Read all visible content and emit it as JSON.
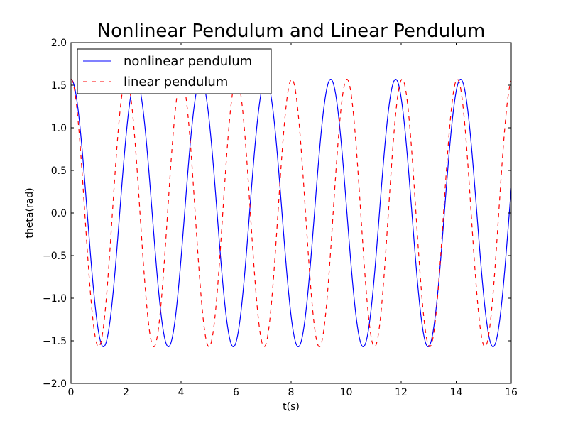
{
  "chart_data": {
    "type": "line",
    "title": "Nonlinear Pendulum and Linear Pendulum",
    "xlabel": "t(s)",
    "ylabel": "theta(rad)",
    "xlim": [
      0,
      16
    ],
    "ylim": [
      -2.0,
      2.0
    ],
    "x_ticks": [
      0,
      2,
      4,
      6,
      8,
      10,
      12,
      14,
      16
    ],
    "x_tick_labels": [
      "0",
      "2",
      "4",
      "6",
      "8",
      "10",
      "12",
      "14",
      "16"
    ],
    "y_ticks": [
      -2.0,
      -1.5,
      -1.0,
      -0.5,
      0.0,
      0.5,
      1.0,
      1.5,
      2.0
    ],
    "y_tick_labels": [
      "−2.0",
      "−1.5",
      "−1.0",
      "−0.5",
      "0.0",
      "0.5",
      "1.0",
      "1.5",
      "2.0"
    ],
    "grid": false,
    "legend_position": "top-left",
    "series": [
      {
        "name": "nonlinear pendulum",
        "color": "#0000ff",
        "style": "solid",
        "amplitude": 1.57,
        "period": 2.36,
        "points": [
          [
            0.0,
            1.57
          ],
          [
            0.59,
            0.0
          ],
          [
            1.18,
            -1.57
          ],
          [
            1.77,
            0.0
          ],
          [
            2.36,
            1.57
          ],
          [
            2.95,
            0.0
          ],
          [
            3.54,
            -1.57
          ],
          [
            4.13,
            0.0
          ],
          [
            4.72,
            1.57
          ],
          [
            5.31,
            0.0
          ],
          [
            5.9,
            -1.57
          ],
          [
            6.49,
            0.0
          ],
          [
            7.08,
            1.57
          ],
          [
            7.67,
            0.0
          ],
          [
            8.26,
            -1.57
          ],
          [
            8.85,
            0.0
          ],
          [
            9.44,
            1.57
          ],
          [
            10.03,
            0.0
          ],
          [
            10.62,
            -1.57
          ],
          [
            11.21,
            0.0
          ],
          [
            11.8,
            1.57
          ],
          [
            12.39,
            0.0
          ],
          [
            12.98,
            -1.57
          ],
          [
            13.57,
            0.0
          ],
          [
            14.16,
            1.57
          ],
          [
            14.75,
            0.0
          ],
          [
            15.34,
            -1.57
          ],
          [
            15.93,
            0.0
          ],
          [
            16.0,
            0.19
          ]
        ]
      },
      {
        "name": "linear pendulum",
        "color": "#ff0000",
        "style": "dashed",
        "amplitude": 1.57,
        "period": 2.006,
        "points": [
          [
            0.0,
            1.57
          ],
          [
            0.5,
            0.0
          ],
          [
            1.0,
            -1.57
          ],
          [
            1.5,
            0.0
          ],
          [
            2.01,
            1.57
          ],
          [
            2.51,
            0.0
          ],
          [
            3.01,
            -1.57
          ],
          [
            3.51,
            0.0
          ],
          [
            4.01,
            1.57
          ],
          [
            4.51,
            0.0
          ],
          [
            5.02,
            -1.57
          ],
          [
            5.52,
            0.0
          ],
          [
            6.02,
            1.57
          ],
          [
            6.52,
            0.0
          ],
          [
            7.02,
            -1.57
          ],
          [
            7.52,
            0.0
          ],
          [
            8.02,
            1.57
          ],
          [
            8.53,
            0.0
          ],
          [
            9.03,
            -1.57
          ],
          [
            9.53,
            0.0
          ],
          [
            10.03,
            1.57
          ],
          [
            10.53,
            0.0
          ],
          [
            11.03,
            -1.57
          ],
          [
            11.53,
            0.0
          ],
          [
            12.04,
            1.57
          ],
          [
            12.54,
            0.0
          ],
          [
            13.04,
            -1.57
          ],
          [
            13.54,
            0.0
          ],
          [
            14.04,
            1.57
          ],
          [
            14.54,
            0.0
          ],
          [
            15.04,
            -1.57
          ],
          [
            15.55,
            0.0
          ],
          [
            16.0,
            1.56
          ]
        ]
      }
    ]
  }
}
